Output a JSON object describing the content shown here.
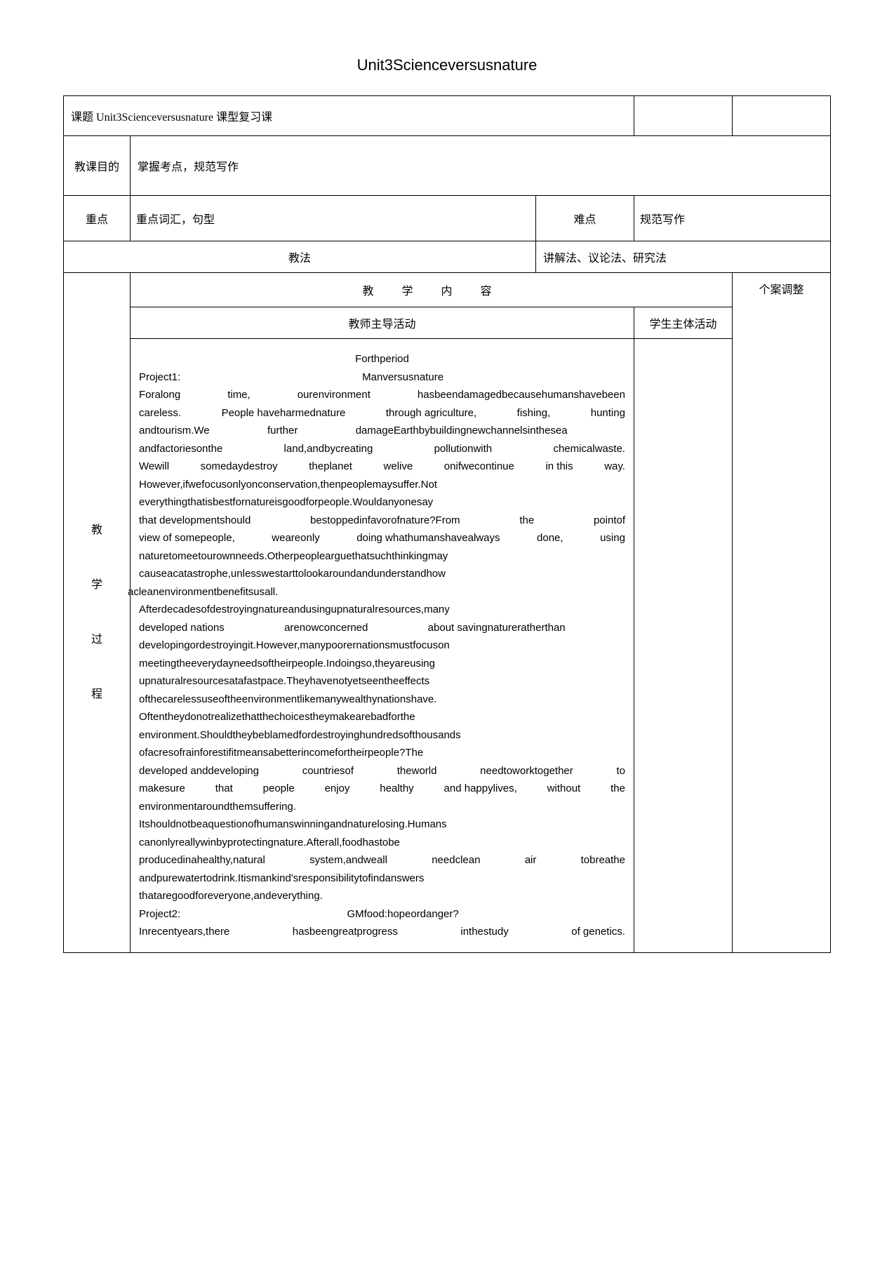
{
  "page_title": "Unit3Scienceversusnature",
  "row_topic": {
    "label": "课题",
    "content": "Unit3Scienceversusnature",
    "type_label": "课型",
    "type_value": "复习课"
  },
  "row_goal": {
    "label": "教课目的",
    "content": "掌握考点，规范写作"
  },
  "row_focus": {
    "label": "重点",
    "content": "重点词汇，句型",
    "difficulty_label": "难点",
    "difficulty_value": "规范写作"
  },
  "row_method": {
    "label": "教法",
    "content": "讲解法、议论法、研究法"
  },
  "teaching_content_header": "教　学　内　容",
  "case_adjust_header": "个案调整",
  "teacher_activity_header": "教师主导活动",
  "student_activity_header": "学生主体活动",
  "process_label_chars": [
    "教",
    "学",
    "过",
    "程"
  ],
  "body_lines": [
    {
      "type": "center",
      "text": "Forthperiod"
    },
    {
      "type": "spread",
      "parts": [
        "Project1:",
        "Manversusnature",
        ""
      ]
    },
    {
      "type": "spread",
      "parts": [
        "Foralong",
        "time,",
        "ourenvironment",
        "hasbeendamagedbecausehumanshavebeen"
      ]
    },
    {
      "type": "spread",
      "parts": [
        "careless.",
        "People haveharmednature",
        "through agriculture,",
        "fishing,",
        "hunting"
      ]
    },
    {
      "type": "spread",
      "parts": [
        "andtourism.We",
        "further",
        "damageEarthbybuildingnewchannelsinthesea",
        ""
      ]
    },
    {
      "type": "spread",
      "parts": [
        "andfactoriesonthe",
        "land,andbycreating",
        "pollutionwith",
        "chemicalwaste."
      ]
    },
    {
      "type": "spread",
      "parts": [
        "Wewill",
        "somedaydestroy",
        "theplanet",
        "welive",
        "onifwecontinue",
        "in  this",
        "way."
      ]
    },
    {
      "type": "left",
      "text": "However,ifwefocusonlyonconservation,thenpeoplemaysuffer.Not"
    },
    {
      "type": "left",
      "text": "everythingthatisbestfornatureisgoodforpeople.Wouldanyonesay"
    },
    {
      "type": "spread",
      "parts": [
        "that   developmentshould",
        "bestoppedinfavorofnature?From",
        "the",
        "pointof"
      ]
    },
    {
      "type": "spread",
      "parts": [
        "view of somepeople,",
        "weareonly",
        "doing whathumanshavealways",
        "done,",
        "using"
      ]
    },
    {
      "type": "left",
      "text": "naturetomeetourownneeds.Otherpeoplearguethatsuchthinkingmay"
    },
    {
      "type": "left",
      "text": "causeacatastrophe,unlesswestarttolookaroundandunderstandhow"
    },
    {
      "type": "left_overflow",
      "text": "acleanenvironmentbenefitsusall."
    },
    {
      "type": "left",
      "text": "Afterdecadesofdestroyingnatureandusingupnaturalresources,many"
    },
    {
      "type": "spread",
      "parts": [
        "developed   nations",
        "arenowconcerned",
        "about savingnatureratherthan",
        ""
      ]
    },
    {
      "type": "left",
      "text": "developingordestroyingit.However,manypoorernationsmustfocuson"
    },
    {
      "type": "left",
      "text": "meetingtheeverydayneedsoftheirpeople.Indoingso,theyareusing"
    },
    {
      "type": "left",
      "text": "upnaturalresourcesatafastpace.Theyhavenotyetseentheeffects"
    },
    {
      "type": "left",
      "text": "ofthecarelessuseoftheenvironmentlikemanywealthynationshave."
    },
    {
      "type": "left",
      "text": "Oftentheydonotrealizethatthechoicestheymakearebadforthe"
    },
    {
      "type": "left",
      "text": "environment.Shouldtheybeblamedfordestroyinghundredsofthousands"
    },
    {
      "type": "left",
      "text": "ofacresofrainforestifitmeansabetterincomefortheirpeople?The"
    },
    {
      "type": "spread",
      "parts": [
        "developed  anddeveloping",
        "countriesof",
        "theworld",
        "needtoworktogether",
        "to"
      ]
    },
    {
      "type": "spread",
      "parts": [
        "makesure",
        "that",
        "people",
        "enjoy",
        "healthy",
        "and happylives,",
        "without",
        "the"
      ]
    },
    {
      "type": "left",
      "text": "environmentaroundthemsuffering."
    },
    {
      "type": "left",
      "text": "Itshouldnotbeaquestionofhumanswinningandnaturelosing.Humans"
    },
    {
      "type": "left",
      "text": "canonlyreallywinbyprotectingnature.Afterall,foodhastobe"
    },
    {
      "type": "spread",
      "parts": [
        "producedinahealthy,natural",
        "system,andweall",
        "needclean",
        "air",
        "tobreathe"
      ]
    },
    {
      "type": "left",
      "text": "andpurewatertodrink.Itismankind'sresponsibilitytofindanswers"
    },
    {
      "type": "left",
      "text": "thataregoodforeveryone,andeverything."
    },
    {
      "type": "spread",
      "parts": [
        "Project2:",
        "GMfood:hopeordanger?",
        ""
      ]
    },
    {
      "type": "spread",
      "parts": [
        "Inrecentyears,there",
        "hasbeengreatprogress",
        "inthestudy",
        "of   genetics."
      ]
    }
  ]
}
